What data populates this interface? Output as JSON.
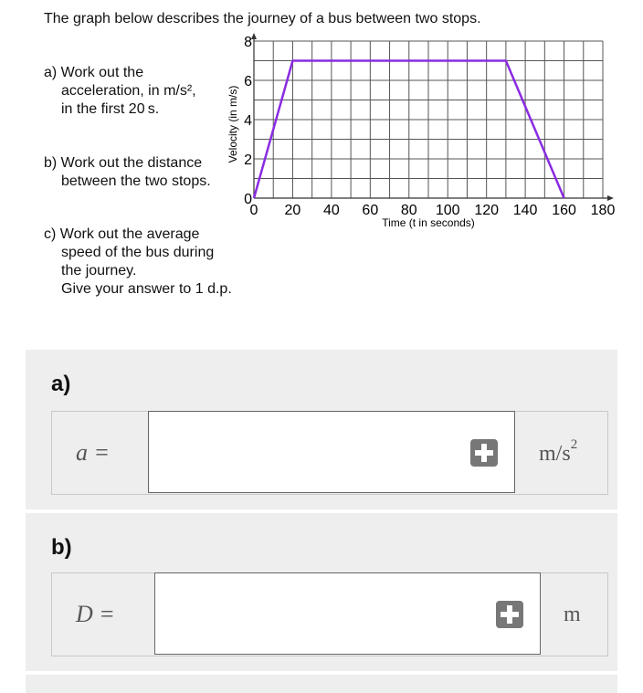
{
  "question": {
    "intro": "The graph below describes the journey of a bus between two stops.",
    "part_a": [
      "a) Work out the",
      "acceleration, in m/s²,",
      "in the first 20 s."
    ],
    "part_b": [
      "b) Work out the distance",
      "between the two stops."
    ],
    "part_c": [
      "c) Work out the average",
      "speed of the bus during",
      "the journey.",
      "Give your answer to 1 d.p."
    ]
  },
  "chart_data": {
    "type": "line",
    "xlabel": "Time (t in seconds)",
    "ylabel": "Velocity (in m/s)",
    "xlim": [
      0,
      180
    ],
    "ylim": [
      0,
      8
    ],
    "x_ticks": [
      0,
      20,
      40,
      60,
      80,
      100,
      120,
      140,
      160,
      180
    ],
    "y_ticks": [
      0,
      2,
      4,
      6,
      8
    ],
    "grid": true,
    "grid_step_x": 10,
    "grid_step_y": 1,
    "series": [
      {
        "x": [
          0,
          20,
          130,
          160
        ],
        "y": [
          0,
          7,
          7,
          0
        ],
        "color": "#8a2be2"
      }
    ]
  },
  "answers": {
    "a": {
      "label": "a)",
      "var": "a =",
      "unit": "m/s",
      "unit_sup": "2",
      "value": ""
    },
    "b": {
      "label": "b)",
      "var": "D =",
      "unit": "m",
      "value": ""
    }
  },
  "colors": {
    "panel": "#eeeeee",
    "line": "#8a2be2",
    "button": "#777777"
  }
}
